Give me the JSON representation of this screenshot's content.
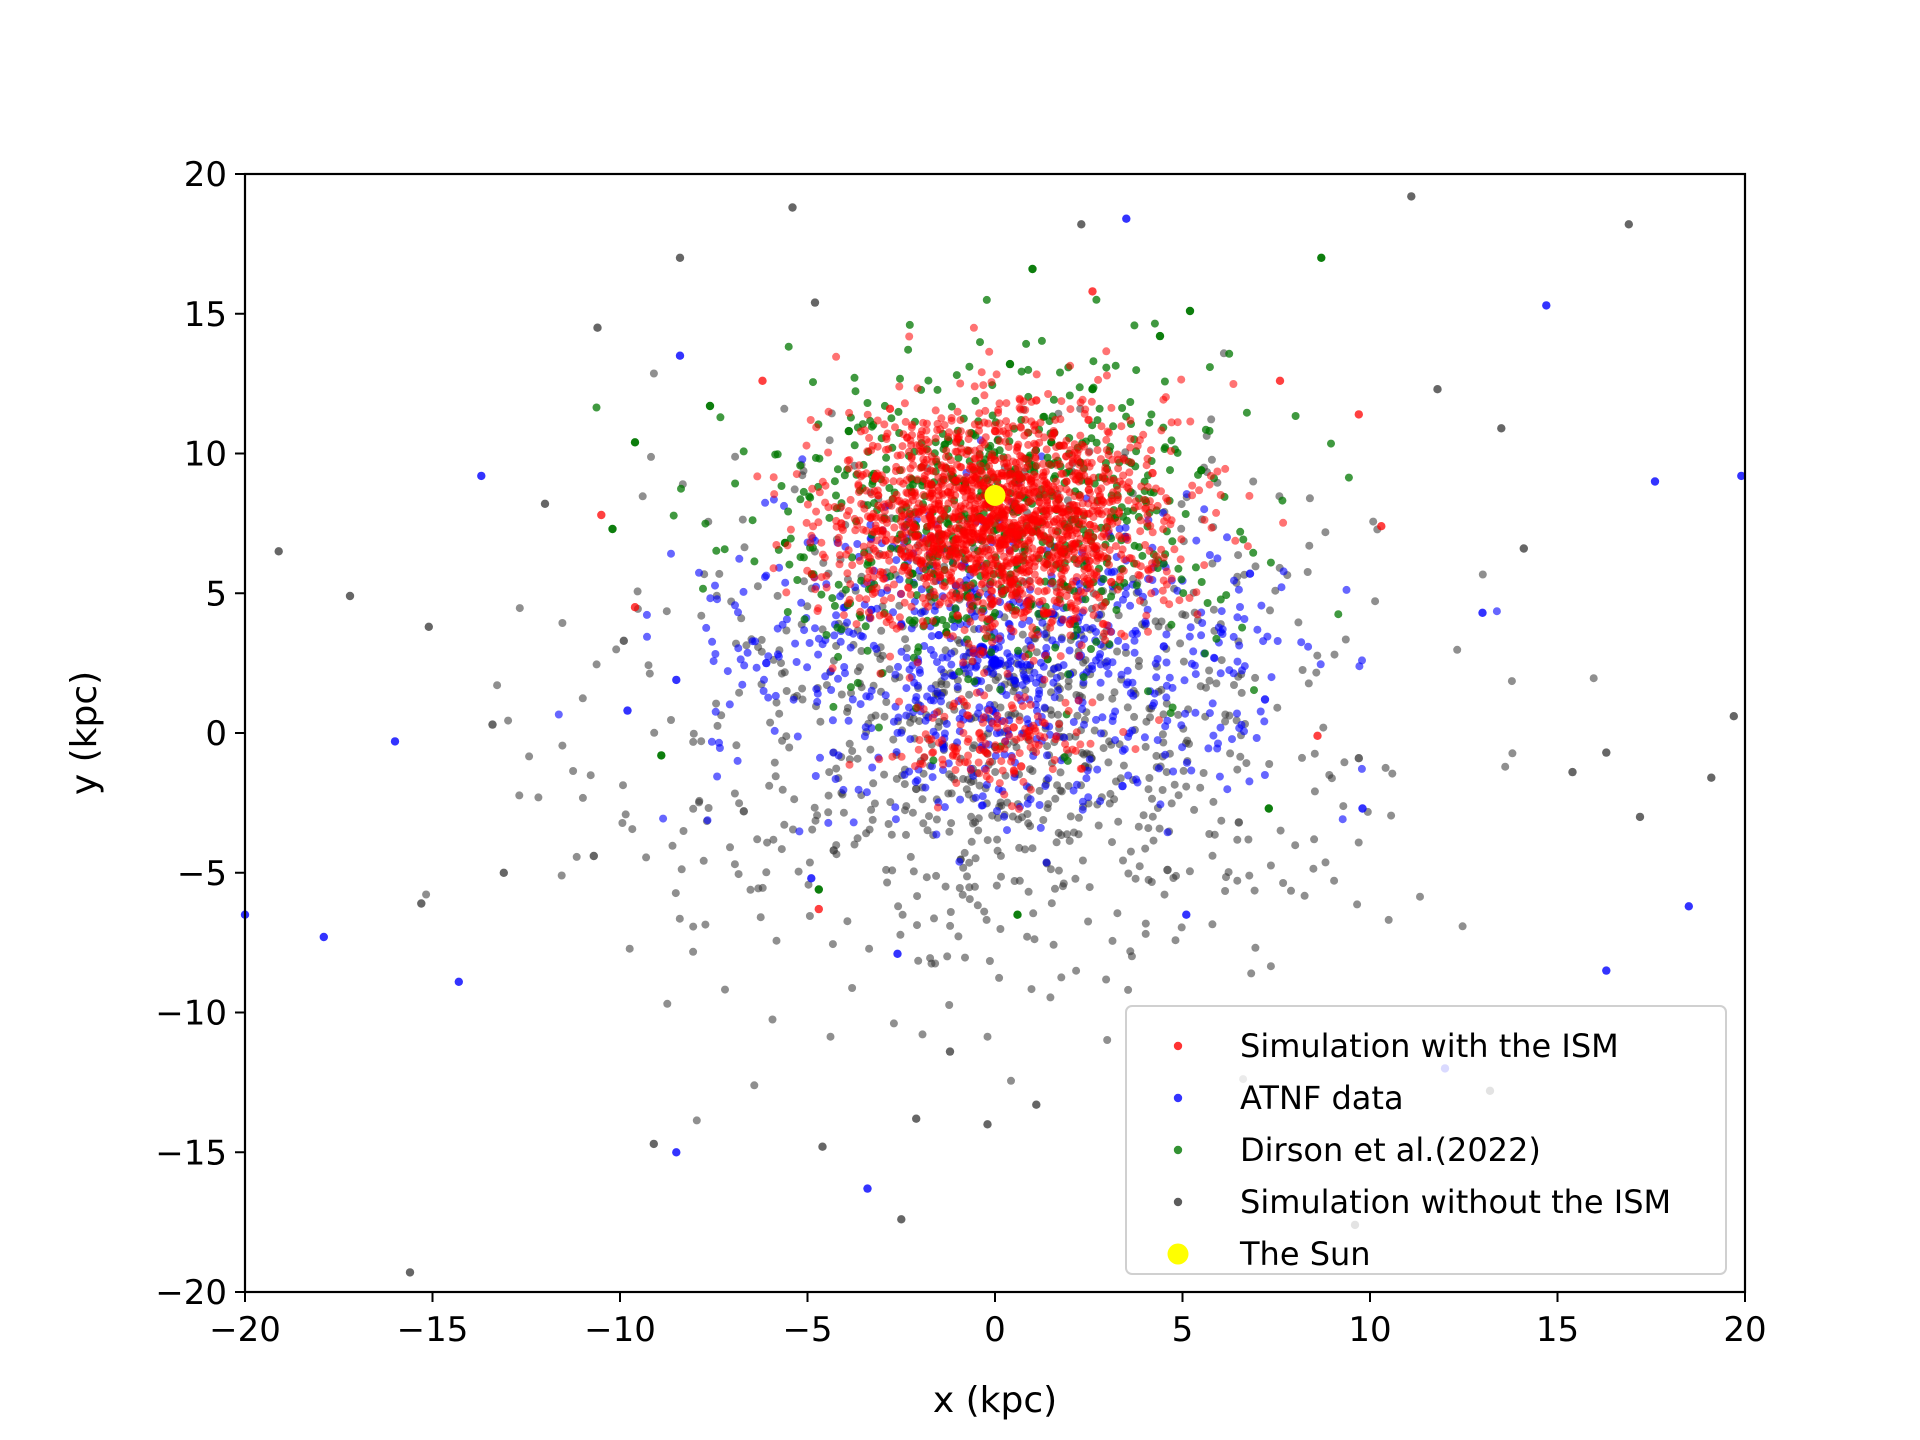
{
  "chart_data": {
    "type": "scatter",
    "title": "",
    "xlabel": "x (kpc)",
    "ylabel": "y (kpc)",
    "xlim": [
      -20,
      20
    ],
    "ylim": [
      -20,
      20
    ],
    "xticks": [
      -20,
      -15,
      -10,
      -5,
      0,
      5,
      10,
      15,
      20
    ],
    "yticks": [
      -20,
      -15,
      -10,
      -5,
      0,
      5,
      10,
      15,
      20
    ],
    "xtick_labels": [
      "−20",
      "−15",
      "−10",
      "−5",
      "0",
      "5",
      "10",
      "15",
      "20"
    ],
    "ytick_labels": [
      "−20",
      "−15",
      "−10",
      "−5",
      "0",
      "5",
      "10",
      "15",
      "20"
    ],
    "grid": false,
    "legend_position": "lower-right",
    "series": [
      {
        "name": "Simulation with the ISM",
        "color": "#ff0000",
        "distribution": "dense cluster centered near (0, 7.5) kpc, sigma ~2.5 kpc, secondary clump near (0, 0)",
        "points": [
          [
            0.2,
            7.4
          ],
          [
            -1.5,
            8.2
          ],
          [
            1.8,
            6.9
          ],
          [
            -0.6,
            9.5
          ],
          [
            0.9,
            5.8
          ],
          [
            2.5,
            8.7
          ],
          [
            -2.4,
            6.3
          ],
          [
            0.0,
            10.8
          ],
          [
            3.1,
            5.4
          ],
          [
            -3.2,
            9.1
          ],
          [
            1.1,
            11.9
          ],
          [
            -1.0,
            4.2
          ],
          [
            4.2,
            9.3
          ],
          [
            -4.1,
            7.5
          ],
          [
            2.0,
            3.9
          ],
          [
            -2.8,
            11.6
          ],
          [
            0.5,
            0.2
          ],
          [
            -0.4,
            -0.6
          ],
          [
            0.7,
            -1.2
          ],
          [
            7.6,
            12.6
          ],
          [
            -6.2,
            12.6
          ],
          [
            2.6,
            15.8
          ],
          [
            -4.7,
            -6.3
          ],
          [
            9.7,
            11.4
          ],
          [
            10.3,
            7.4
          ],
          [
            -9.6,
            4.5
          ],
          [
            8.6,
            -0.1
          ],
          [
            -10.5,
            7.8
          ]
        ]
      },
      {
        "name": "ATNF data",
        "color": "#0000ff",
        "distribution": "broad ring/disc centered near (0, 3) kpc with wide scatter",
        "points": [
          [
            -1.5,
            3.5
          ],
          [
            2.0,
            2.1
          ],
          [
            -3.3,
            4.4
          ],
          [
            4.5,
            3.1
          ],
          [
            6.8,
            5.7
          ],
          [
            -6.1,
            2.5
          ],
          [
            7.2,
            1.2
          ],
          [
            -8.5,
            1.9
          ],
          [
            3.4,
            -1.9
          ],
          [
            -4.9,
            -5.2
          ],
          [
            5.1,
            -6.5
          ],
          [
            -2.6,
            -7.9
          ],
          [
            9.8,
            -2.7
          ],
          [
            -9.8,
            0.8
          ],
          [
            13.0,
            4.3
          ],
          [
            -13.7,
            9.2
          ],
          [
            14.7,
            15.3
          ],
          [
            3.5,
            18.4
          ],
          [
            -8.4,
            13.5
          ],
          [
            -17.9,
            -7.3
          ],
          [
            -20.0,
            -6.5
          ],
          [
            -14.3,
            -8.9
          ],
          [
            17.6,
            9.0
          ],
          [
            19.9,
            9.2
          ],
          [
            -16.0,
            -0.3
          ],
          [
            18.5,
            -6.2
          ],
          [
            16.3,
            -8.5
          ],
          [
            -8.5,
            -15.0
          ],
          [
            -3.4,
            -16.3
          ],
          [
            12.0,
            -12.0
          ]
        ]
      },
      {
        "name": "Dirson et al.(2022)",
        "color": "#007700",
        "distribution": "concentrated around (0, 8) kpc, sigma ~3 kpc",
        "points": [
          [
            -0.8,
            8.9
          ],
          [
            1.5,
            10.4
          ],
          [
            -2.2,
            5.7
          ],
          [
            3.2,
            7.7
          ],
          [
            -3.9,
            10.8
          ],
          [
            2.6,
            12.3
          ],
          [
            -1.3,
            3.6
          ],
          [
            5.5,
            9.4
          ],
          [
            -5.6,
            6.8
          ],
          [
            0.4,
            13.2
          ],
          [
            4.4,
            14.2
          ],
          [
            -7.6,
            11.7
          ],
          [
            8.7,
            17.0
          ],
          [
            -9.6,
            10.4
          ],
          [
            7.3,
            -2.7
          ],
          [
            0.6,
            -6.5
          ],
          [
            -8.9,
            -0.8
          ],
          [
            1.0,
            16.6
          ],
          [
            5.2,
            15.1
          ],
          [
            -10.2,
            7.3
          ],
          [
            -4.7,
            -5.6
          ]
        ]
      },
      {
        "name": "Simulation without the ISM",
        "color": "#333333",
        "distribution": "diffuse disc centered near (0, 0) kpc, wide scatter to ~20 kpc",
        "points": [
          [
            0.0,
            -0.5
          ],
          [
            -2.1,
            -2.0
          ],
          [
            2.4,
            -1.2
          ],
          [
            -4.3,
            -4.2
          ],
          [
            4.6,
            -4.9
          ],
          [
            -6.7,
            -2.8
          ],
          [
            6.5,
            -3.2
          ],
          [
            9.7,
            -0.9
          ],
          [
            -9.9,
            3.3
          ],
          [
            -5.4,
            18.8
          ],
          [
            11.1,
            19.2
          ],
          [
            16.9,
            18.2
          ],
          [
            2.3,
            18.2
          ],
          [
            -8.4,
            17.0
          ],
          [
            -4.8,
            15.4
          ],
          [
            -10.6,
            14.5
          ],
          [
            -19.1,
            6.5
          ],
          [
            -17.2,
            4.9
          ],
          [
            -15.1,
            3.8
          ],
          [
            -13.4,
            0.3
          ],
          [
            -15.6,
            -19.3
          ],
          [
            -9.1,
            -14.7
          ],
          [
            -4.6,
            -14.8
          ],
          [
            -2.5,
            -17.4
          ],
          [
            9.6,
            -17.6
          ],
          [
            13.2,
            -12.8
          ],
          [
            16.3,
            -0.7
          ],
          [
            19.7,
            0.6
          ],
          [
            17.2,
            -3.0
          ],
          [
            13.5,
            10.9
          ],
          [
            11.8,
            12.3
          ],
          [
            14.1,
            6.6
          ],
          [
            -15.3,
            -6.1
          ],
          [
            -13.1,
            -5.0
          ],
          [
            -10.7,
            -4.4
          ],
          [
            -0.2,
            -14.0
          ],
          [
            -1.2,
            -11.4
          ],
          [
            1.1,
            -13.3
          ],
          [
            -2.1,
            -13.8
          ],
          [
            -12.0,
            8.2
          ],
          [
            15.4,
            -1.4
          ],
          [
            19.1,
            -1.6
          ]
        ]
      },
      {
        "name": "The Sun",
        "color": "#ffff00",
        "points": [
          [
            0.0,
            8.5
          ]
        ]
      }
    ]
  }
}
